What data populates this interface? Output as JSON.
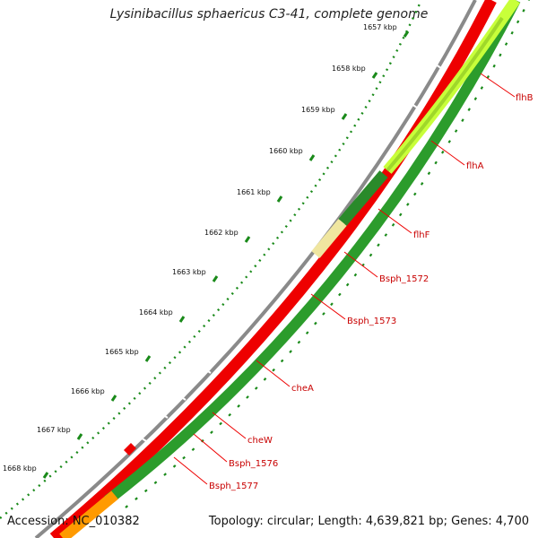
{
  "title": "Lysinibacillus sphaericus C3-41, complete genome",
  "footer": {
    "accession": "Accession: NC_010382",
    "summary": "Topology: circular; Length: 4,639,821 bp; Genes: 4,700"
  },
  "colors": {
    "backbone": "#888888",
    "forward_cds": "#ee0000",
    "reverse_dark": "#2c9c2c",
    "reverse_light": "#c8ff3a",
    "pseudo": "#f0e6a0",
    "orange": "#ff9a00",
    "label_line": "#ee0000",
    "tick_dot": "#1a8a1a"
  },
  "ticks": [
    {
      "label": "1657 kbp"
    },
    {
      "label": "1658 kbp"
    },
    {
      "label": "1659 kbp"
    },
    {
      "label": "1660 kbp"
    },
    {
      "label": "1661 kbp"
    },
    {
      "label": "1662 kbp"
    },
    {
      "label": "1663 kbp"
    },
    {
      "label": "1664 kbp"
    },
    {
      "label": "1665 kbp"
    },
    {
      "label": "1666 kbp"
    },
    {
      "label": "1667 kbp"
    },
    {
      "label": "1668 kbp"
    }
  ],
  "genes": [
    {
      "name": "flhB"
    },
    {
      "name": "flhA"
    },
    {
      "name": "flhF"
    },
    {
      "name": "Bsph_1572"
    },
    {
      "name": "Bsph_1573"
    },
    {
      "name": "cheA"
    },
    {
      "name": "cheW"
    },
    {
      "name": "Bsph_1576"
    },
    {
      "name": "Bsph_1577"
    }
  ]
}
